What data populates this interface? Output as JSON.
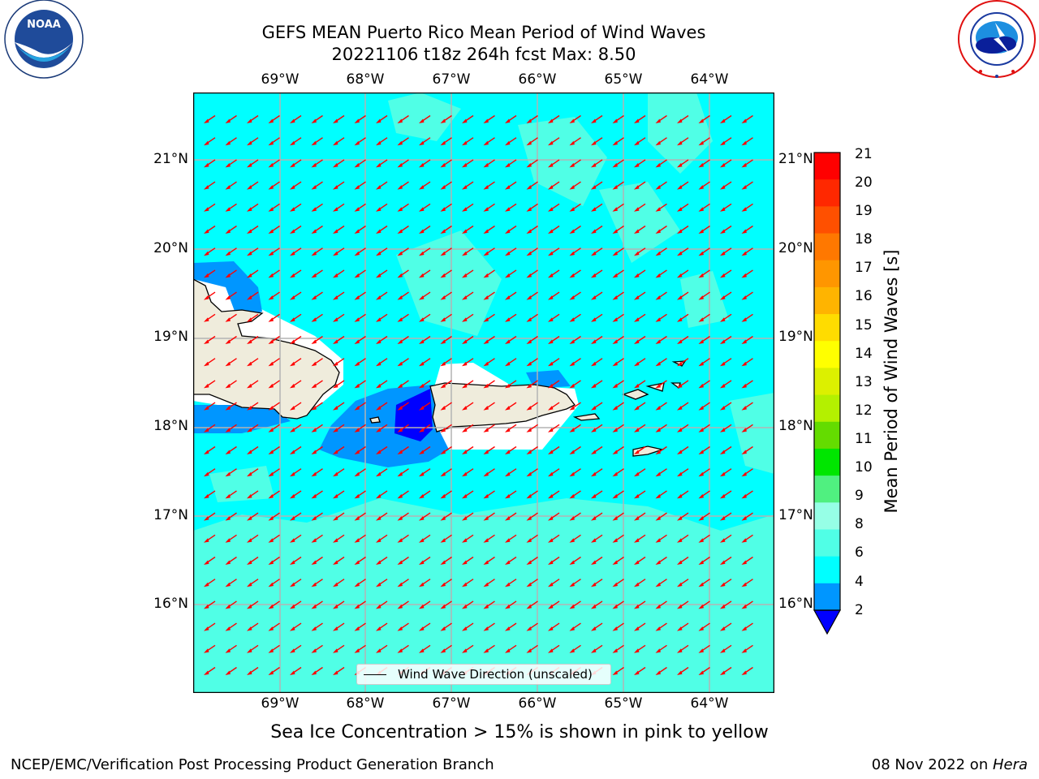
{
  "title": {
    "line1": "GEFS MEAN Puerto Rico Mean Period of Wind Waves",
    "line2": "20221106 t18z 264h fcst   Max: 8.50"
  },
  "logos": {
    "left": {
      "name": "noaa-logo",
      "text": "NOAA",
      "ring_text": "NATIONAL OCEANIC AND ATMOSPHERIC ADMINISTRATION · U.S. DEPARTMENT OF COMMERCE"
    },
    "right": {
      "name": "nws-logo",
      "ring_text": "NATIONAL WEATHER SERVICE"
    }
  },
  "map": {
    "lon_labels": [
      "69°W",
      "68°W",
      "67°W",
      "66°W",
      "65°W",
      "64°W"
    ],
    "lat_labels": [
      "21°N",
      "20°N",
      "19°N",
      "18°N",
      "17°N",
      "16°N"
    ],
    "lon_range": [
      -70.0,
      -63.25
    ],
    "lat_range": [
      15.0,
      21.75
    ],
    "grid": true,
    "arrow_direction": "toward south-west",
    "legend": {
      "label": "Wind Wave Direction (unscaled)",
      "placement": "bottom-center"
    }
  },
  "colorbar": {
    "label": "Mean Period of Wind Waves [s]",
    "ticks": [
      "21",
      "20",
      "19",
      "18",
      "17",
      "16",
      "15",
      "14",
      "13",
      "12",
      "11",
      "10",
      "9",
      "8",
      "6",
      "4",
      "2"
    ],
    "colors": [
      "#ff0000",
      "#ff2800",
      "#ff5000",
      "#ff7800",
      "#ff9600",
      "#ffb400",
      "#ffdc00",
      "#ffff00",
      "#dcf000",
      "#b4f000",
      "#64dc00",
      "#00e600",
      "#50f080",
      "#96ffe6",
      "#50ffe6",
      "#00ffff",
      "#0096ff",
      "#0000ff"
    ],
    "extend": "min"
  },
  "colors": {
    "ocean_4_6": "#00ffff",
    "ocean_6_8": "#50ffe6",
    "ocean_2_4": "#0096ff",
    "ocean_lt2": "#0000ff",
    "land": "#efecdc",
    "arrow": "#ff0000"
  },
  "subtitle": "Sea Ice Concentration > 15% is shown in pink to yellow",
  "footer": {
    "left": "NCEP/EMC/Verification Post Processing Product Generation Branch",
    "right_prefix": "08 Nov 2022 on ",
    "right_italic": "Hera"
  }
}
